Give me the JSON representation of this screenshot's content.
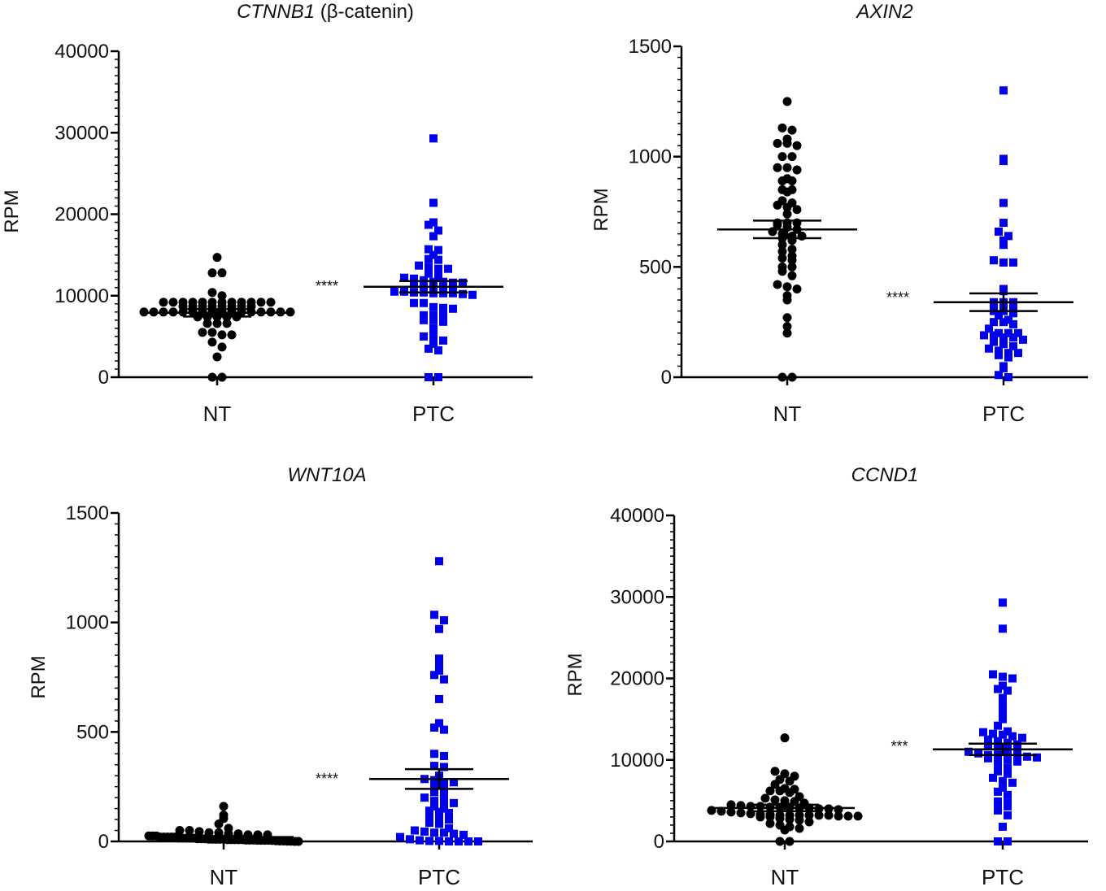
{
  "chart_data": [
    {
      "type": "scatter",
      "title": "CTNNB1",
      "title_suffix": " (β-catenin)",
      "ylabel": "RPM",
      "ylim": [
        0,
        40000
      ],
      "yticks": [
        0,
        10000,
        20000,
        30000,
        40000
      ],
      "categories": [
        "NT",
        "PTC"
      ],
      "significance": "****",
      "series": [
        {
          "category": "NT",
          "marker": "circle",
          "color": "#000000",
          "mean": 7900,
          "sem": 450,
          "values": [
            14700,
            12800,
            12800,
            10400,
            10000,
            9200,
            9200,
            9200,
            9200,
            9200,
            9200,
            9200,
            9200,
            9200,
            9200,
            9200,
            9200,
            8700,
            8700,
            8700,
            8700,
            8700,
            8700,
            8700,
            8700,
            8000,
            8000,
            8000,
            8000,
            8000,
            8000,
            8000,
            8000,
            8000,
            8000,
            8000,
            8000,
            8000,
            8000,
            8000,
            8000,
            7400,
            7400,
            7400,
            7400,
            7400,
            6600,
            6600,
            6600,
            5500,
            5500,
            5200,
            5200,
            4300,
            3700,
            2500,
            0,
            0
          ]
        },
        {
          "category": "PTC",
          "marker": "square",
          "color": "#0000ee",
          "mean": 11100,
          "sem": 700,
          "values": [
            29300,
            21400,
            19000,
            18700,
            18000,
            17300,
            15700,
            15600,
            15000,
            14500,
            14400,
            13700,
            13500,
            13300,
            13300,
            12700,
            12400,
            12200,
            12100,
            11900,
            11700,
            11700,
            11600,
            11600,
            11400,
            11300,
            11200,
            11000,
            10900,
            10500,
            10500,
            10400,
            10400,
            10300,
            10300,
            10300,
            10200,
            10100,
            9100,
            9100,
            8600,
            8500,
            8400,
            7600,
            7600,
            7600,
            7000,
            7000,
            6800,
            6000,
            5800,
            5000,
            5000,
            4500,
            4100,
            3500,
            3300,
            0,
            0
          ]
        }
      ]
    },
    {
      "type": "scatter",
      "title": "AXIN2",
      "title_suffix": "",
      "ylabel": "RPM",
      "ylim": [
        0,
        1500
      ],
      "yticks": [
        0,
        500,
        1000,
        1500
      ],
      "categories": [
        "NT",
        "PTC"
      ],
      "significance": "****",
      "series": [
        {
          "category": "NT",
          "marker": "circle",
          "color": "#000000",
          "mean": 670,
          "sem": 40,
          "values": [
            1250,
            1130,
            1120,
            1080,
            1060,
            1060,
            1050,
            1000,
            1000,
            950,
            950,
            940,
            900,
            890,
            890,
            850,
            850,
            840,
            800,
            790,
            780,
            770,
            760,
            740,
            700,
            700,
            700,
            690,
            680,
            670,
            660,
            650,
            640,
            640,
            630,
            620,
            600,
            580,
            570,
            550,
            540,
            530,
            500,
            500,
            480,
            460,
            420,
            410,
            400,
            370,
            350,
            270,
            230,
            200,
            0,
            0
          ]
        },
        {
          "category": "PTC",
          "marker": "square",
          "color": "#0000ee",
          "mean": 340,
          "sem": 40,
          "values": [
            1300,
            990,
            980,
            790,
            700,
            660,
            640,
            620,
            600,
            530,
            520,
            520,
            400,
            390,
            340,
            340,
            340,
            330,
            320,
            310,
            300,
            300,
            290,
            280,
            260,
            250,
            250,
            240,
            220,
            200,
            200,
            200,
            190,
            190,
            180,
            180,
            170,
            160,
            150,
            140,
            130,
            120,
            110,
            110,
            100,
            90,
            50,
            40,
            10,
            0
          ]
        }
      ]
    },
    {
      "type": "scatter",
      "title": "WNT10A",
      "title_suffix": "",
      "ylabel": "RPM",
      "ylim": [
        0,
        1500
      ],
      "yticks": [
        0,
        500,
        1000,
        1500
      ],
      "categories": [
        "NT",
        "PTC"
      ],
      "significance": "****",
      "series": [
        {
          "category": "NT",
          "marker": "circle",
          "color": "#000000",
          "mean": 20,
          "sem": 5,
          "values": [
            160,
            120,
            105,
            80,
            60,
            50,
            50,
            45,
            40,
            40,
            35,
            35,
            30,
            30,
            30,
            25,
            25,
            25,
            20,
            20,
            20,
            20,
            20,
            15,
            15,
            15,
            15,
            15,
            12,
            12,
            12,
            10,
            10,
            10,
            10,
            10,
            8,
            8,
            8,
            8,
            8,
            6,
            6,
            6,
            5,
            5,
            5,
            5,
            4,
            3,
            2,
            2,
            1,
            1,
            0,
            0
          ]
        },
        {
          "category": "PTC",
          "marker": "square",
          "color": "#0000ee",
          "mean": 285,
          "sem": 45,
          "values": [
            1280,
            1035,
            1010,
            970,
            835,
            805,
            780,
            760,
            740,
            650,
            540,
            520,
            510,
            400,
            390,
            345,
            340,
            300,
            285,
            280,
            270,
            270,
            250,
            235,
            225,
            210,
            200,
            185,
            180,
            175,
            160,
            150,
            140,
            135,
            130,
            110,
            110,
            100,
            85,
            80,
            60,
            50,
            45,
            40,
            40,
            35,
            30,
            20,
            10,
            5,
            2,
            2,
            0,
            0,
            0,
            0
          ]
        }
      ]
    },
    {
      "type": "scatter",
      "title": "CCND1",
      "title_suffix": "",
      "ylabel": "RPM",
      "ylim": [
        0,
        40000
      ],
      "yticks": [
        0,
        10000,
        20000,
        30000,
        40000
      ],
      "categories": [
        "NT",
        "PTC"
      ],
      "significance": "***",
      "series": [
        {
          "category": "NT",
          "marker": "circle",
          "color": "#000000",
          "mean": 4100,
          "sem": 400,
          "values": [
            12700,
            8600,
            8300,
            8000,
            7600,
            7400,
            7000,
            6500,
            6400,
            6200,
            6200,
            6000,
            5500,
            5300,
            5100,
            5000,
            4900,
            4700,
            4500,
            4400,
            4300,
            4300,
            4200,
            4200,
            4200,
            4100,
            4100,
            4000,
            4000,
            3900,
            3800,
            3700,
            3600,
            3500,
            3400,
            3300,
            3300,
            3200,
            3200,
            3200,
            3200,
            3200,
            3200,
            3100,
            3100,
            3100,
            3000,
            3000,
            2800,
            2700,
            2600,
            2400,
            2200,
            2000,
            1800,
            1600,
            1400,
            0,
            0
          ]
        },
        {
          "category": "PTC",
          "marker": "square",
          "color": "#0000ee",
          "mean": 11300,
          "sem": 700,
          "values": [
            29300,
            26100,
            20500,
            20200,
            20000,
            19100,
            18700,
            18500,
            17600,
            16800,
            16000,
            15600,
            15000,
            14200,
            13500,
            13400,
            13200,
            13100,
            12900,
            12700,
            12500,
            12300,
            12100,
            11900,
            11700,
            11600,
            11400,
            11200,
            11000,
            10800,
            10600,
            10600,
            10500,
            10500,
            10400,
            10300,
            10200,
            10100,
            10000,
            9800,
            9300,
            9000,
            8600,
            8300,
            7800,
            7400,
            7200,
            6600,
            6100,
            5700,
            4900,
            4700,
            4600,
            4300,
            3800,
            3200,
            1800,
            0,
            0
          ]
        }
      ]
    }
  ]
}
